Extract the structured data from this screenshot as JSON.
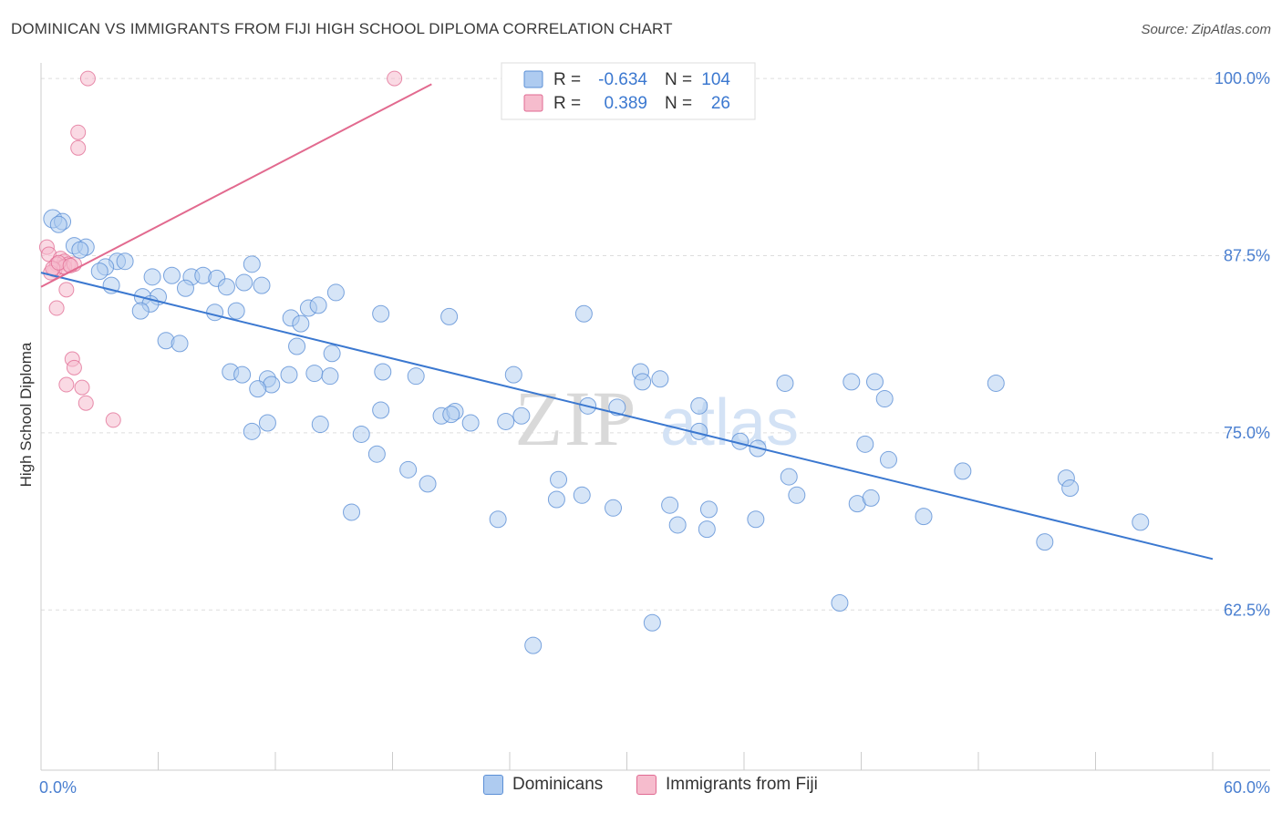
{
  "title": "DOMINICAN VS IMMIGRANTS FROM FIJI HIGH SCHOOL DIPLOMA CORRELATION CHART",
  "source": "Source: ZipAtlas.com",
  "watermark": {
    "part1": "ZIP",
    "part2": "atlas"
  },
  "colors": {
    "blue": "#5b8fd6",
    "blue_fill": "#aecbf0",
    "blue_line": "#3b78d0",
    "pink": "#e06a92",
    "pink_fill": "#f6bccd",
    "pink_line": "#e26a8f",
    "tick_text": "#4a7fd0",
    "grid": "#dddddd"
  },
  "legend": {
    "rows": [
      {
        "r_label": "R = ",
        "r_value": "-0.634",
        "n_label": "N = ",
        "n_value": "104"
      },
      {
        "r_label": "R = ",
        "r_value": "0.389",
        "n_label": "N = ",
        "n_value": "26"
      }
    ]
  },
  "chart_data": {
    "type": "scatter",
    "title": "DOMINICAN VS IMMIGRANTS FROM FIJI HIGH SCHOOL DIPLOMA CORRELATION CHART",
    "xlabel": "",
    "ylabel": "High School Diploma",
    "xlim": [
      0,
      60
    ],
    "ylim": [
      51.2,
      101.1
    ],
    "x_tick_labels": [
      "0.0%",
      "60.0%"
    ],
    "y_ticks": [
      {
        "value": 100.0,
        "label": "100.0%"
      },
      {
        "value": 87.5,
        "label": "87.5%"
      },
      {
        "value": 75.0,
        "label": "75.0%"
      },
      {
        "value": 62.5,
        "label": "62.5%"
      }
    ],
    "series": [
      {
        "name": "Dominicans",
        "r": -0.634,
        "n": 104,
        "trend": {
          "x0": 0.0,
          "y0": 86.3,
          "x1": 60.0,
          "y1": 66.1
        },
        "points": [
          [
            0.6,
            90.1
          ],
          [
            1.1,
            89.9
          ],
          [
            0.9,
            89.7
          ],
          [
            1.7,
            88.2
          ],
          [
            2.3,
            88.1
          ],
          [
            2.0,
            87.9
          ],
          [
            3.9,
            87.1
          ],
          [
            4.3,
            87.1
          ],
          [
            3.3,
            86.7
          ],
          [
            3.0,
            86.4
          ],
          [
            5.7,
            86.0
          ],
          [
            6.7,
            86.1
          ],
          [
            7.7,
            86.0
          ],
          [
            8.3,
            86.1
          ],
          [
            9.0,
            85.9
          ],
          [
            10.4,
            85.6
          ],
          [
            3.6,
            85.4
          ],
          [
            7.4,
            85.2
          ],
          [
            9.5,
            85.3
          ],
          [
            10.8,
            86.9
          ],
          [
            11.3,
            85.4
          ],
          [
            5.2,
            84.6
          ],
          [
            6.0,
            84.6
          ],
          [
            5.6,
            84.1
          ],
          [
            5.1,
            83.6
          ],
          [
            8.9,
            83.5
          ],
          [
            10.0,
            83.6
          ],
          [
            15.1,
            84.9
          ],
          [
            13.7,
            83.8
          ],
          [
            14.2,
            84.0
          ],
          [
            17.4,
            83.4
          ],
          [
            20.9,
            83.2
          ],
          [
            27.8,
            83.4
          ],
          [
            12.8,
            83.1
          ],
          [
            13.3,
            82.7
          ],
          [
            6.4,
            81.5
          ],
          [
            7.1,
            81.3
          ],
          [
            13.1,
            81.1
          ],
          [
            14.9,
            80.6
          ],
          [
            9.7,
            79.3
          ],
          [
            10.3,
            79.1
          ],
          [
            11.6,
            78.8
          ],
          [
            12.7,
            79.1
          ],
          [
            14.0,
            79.2
          ],
          [
            14.8,
            79.0
          ],
          [
            17.5,
            79.3
          ],
          [
            19.2,
            79.0
          ],
          [
            24.2,
            79.1
          ],
          [
            30.7,
            79.3
          ],
          [
            30.8,
            78.6
          ],
          [
            31.7,
            78.8
          ],
          [
            38.1,
            78.5
          ],
          [
            41.5,
            78.6
          ],
          [
            42.7,
            78.6
          ],
          [
            43.2,
            77.4
          ],
          [
            48.9,
            78.5
          ],
          [
            11.8,
            78.4
          ],
          [
            11.1,
            78.1
          ],
          [
            28.0,
            76.9
          ],
          [
            29.5,
            76.8
          ],
          [
            33.7,
            76.9
          ],
          [
            17.4,
            76.6
          ],
          [
            20.5,
            76.2
          ],
          [
            21.2,
            76.5
          ],
          [
            24.6,
            76.2
          ],
          [
            21.0,
            76.3
          ],
          [
            22.0,
            75.7
          ],
          [
            23.8,
            75.8
          ],
          [
            14.3,
            75.6
          ],
          [
            11.6,
            75.7
          ],
          [
            10.8,
            75.1
          ],
          [
            16.4,
            74.9
          ],
          [
            33.7,
            75.1
          ],
          [
            36.7,
            73.9
          ],
          [
            35.8,
            74.4
          ],
          [
            42.2,
            74.2
          ],
          [
            43.4,
            73.1
          ],
          [
            17.2,
            73.5
          ],
          [
            18.8,
            72.4
          ],
          [
            19.8,
            71.4
          ],
          [
            26.5,
            71.7
          ],
          [
            27.7,
            70.6
          ],
          [
            26.4,
            70.3
          ],
          [
            38.3,
            71.9
          ],
          [
            38.7,
            70.6
          ],
          [
            29.3,
            69.7
          ],
          [
            32.2,
            69.9
          ],
          [
            34.2,
            69.6
          ],
          [
            41.8,
            70.0
          ],
          [
            42.5,
            70.4
          ],
          [
            15.9,
            69.4
          ],
          [
            23.4,
            68.9
          ],
          [
            32.6,
            68.5
          ],
          [
            34.1,
            68.2
          ],
          [
            52.5,
            71.8
          ],
          [
            52.7,
            71.1
          ],
          [
            47.2,
            72.3
          ],
          [
            56.3,
            68.7
          ],
          [
            51.4,
            67.3
          ],
          [
            45.2,
            69.1
          ],
          [
            36.6,
            68.9
          ],
          [
            40.9,
            63.0
          ],
          [
            31.3,
            61.6
          ],
          [
            25.2,
            60.0
          ]
        ]
      },
      {
        "name": "Immigrants from Fiji",
        "r": 0.389,
        "n": 26,
        "trend": {
          "x0": 0.0,
          "y0": 85.3,
          "x1": 20.0,
          "y1": 99.6
        },
        "points": [
          [
            2.4,
            100.0
          ],
          [
            18.1,
            100.0
          ],
          [
            1.9,
            96.2
          ],
          [
            1.9,
            95.1
          ],
          [
            0.3,
            88.1
          ],
          [
            0.4,
            87.6
          ],
          [
            1.0,
            87.3
          ],
          [
            1.2,
            87.1
          ],
          [
            1.4,
            86.9
          ],
          [
            1.1,
            86.7
          ],
          [
            0.8,
            86.9
          ],
          [
            0.7,
            86.5
          ],
          [
            1.2,
            86.7
          ],
          [
            0.5,
            86.3
          ],
          [
            1.7,
            86.9
          ],
          [
            1.3,
            85.1
          ],
          [
            0.8,
            83.8
          ],
          [
            1.6,
            80.2
          ],
          [
            1.7,
            79.6
          ],
          [
            1.3,
            78.4
          ],
          [
            2.1,
            78.2
          ],
          [
            2.3,
            77.1
          ],
          [
            3.7,
            75.9
          ],
          [
            0.6,
            86.6
          ],
          [
            0.9,
            87.0
          ],
          [
            1.5,
            86.8
          ]
        ]
      }
    ]
  },
  "bottom_legend": {
    "dominicans": "Dominicans",
    "fiji": "Immigrants from Fiji"
  }
}
